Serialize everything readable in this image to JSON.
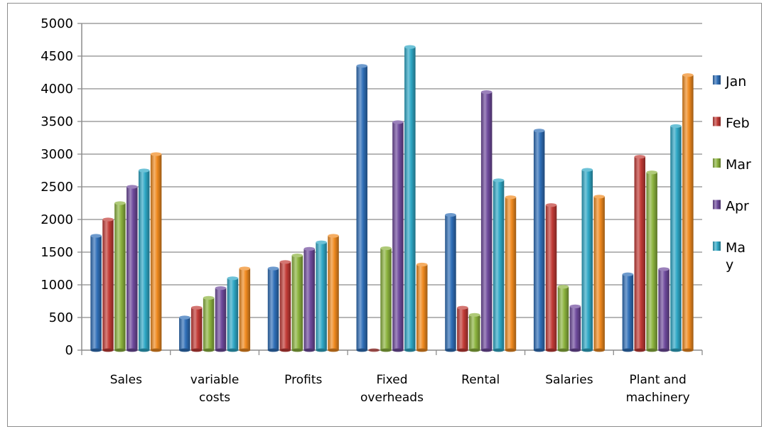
{
  "chart_data": {
    "type": "bar",
    "categories": [
      [
        "Sales"
      ],
      [
        "variable",
        "costs"
      ],
      [
        "Profits"
      ],
      [
        "Fixed",
        "overheads"
      ],
      [
        "Rental"
      ],
      [
        "Salaries"
      ],
      [
        "Plant and",
        "machinery"
      ]
    ],
    "series": [
      {
        "name": "Jan",
        "color": "#2f6fb8",
        "values": [
          1750,
          500,
          1250,
          4350,
          2070,
          3360,
          1160
        ]
      },
      {
        "name": "Feb",
        "color": "#c23b36",
        "values": [
          2000,
          650,
          1350,
          0,
          650,
          2220,
          2960
        ]
      },
      {
        "name": "Mar",
        "color": "#8cb33e",
        "values": [
          2250,
          800,
          1450,
          1560,
          540,
          970,
          2720
        ]
      },
      {
        "name": "Apr",
        "color": "#6e4a9c",
        "values": [
          2500,
          950,
          1550,
          3490,
          3950,
          670,
          1240
        ]
      },
      {
        "name": "May",
        "color": "#2fa8c6",
        "values": [
          2750,
          1100,
          1650,
          4640,
          2600,
          2760,
          3430
        ]
      },
      {
        "name": "",
        "color": "#f08a1f",
        "values": [
          3000,
          1250,
          1750,
          1310,
          2340,
          2350,
          4210
        ]
      }
    ],
    "legend_labels": [
      [
        "Jan"
      ],
      [
        "Feb"
      ],
      [
        "Mar"
      ],
      [
        "Apr"
      ],
      [
        "Ma",
        "y"
      ]
    ],
    "yticks": [
      "0",
      "500",
      "1000",
      "1500",
      "2000",
      "2500",
      "3000",
      "3500",
      "4000",
      "4500",
      "5000"
    ],
    "ylim": [
      0,
      5000
    ],
    "grid": true,
    "legend_position": "right",
    "title": "",
    "xlabel": "",
    "ylabel": ""
  }
}
